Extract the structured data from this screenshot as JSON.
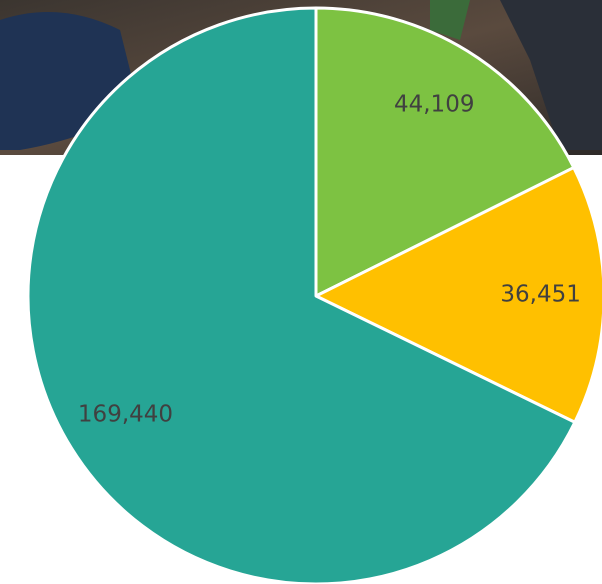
{
  "chart_data": {
    "type": "pie",
    "categories": [
      null,
      null,
      null
    ],
    "values": [
      44109,
      36451,
      169440
    ],
    "value_labels": [
      "44,109",
      "36,451",
      "169,440"
    ],
    "colors": [
      "#7dc242",
      "#ffc000",
      "#26a595"
    ]
  }
}
